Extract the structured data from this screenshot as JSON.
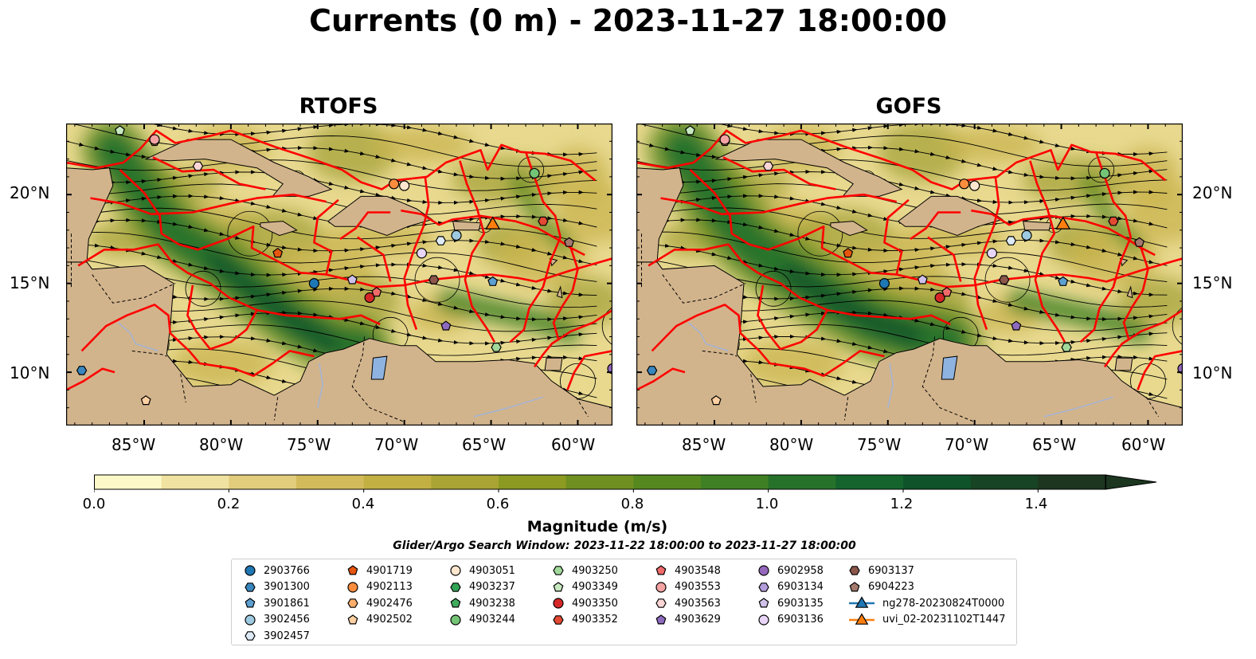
{
  "title": "Currents (0 m) - 2023-11-27 18:00:00",
  "panels": [
    {
      "title": "RTOFS"
    },
    {
      "title": "GOFS"
    }
  ],
  "axes": {
    "y_ticks": [
      "20°N",
      "15°N",
      "10°N"
    ],
    "x_ticks": [
      "85°W",
      "80°W",
      "75°W",
      "70°W",
      "65°W",
      "60°W"
    ],
    "lon_range": [
      -89.5,
      -58
    ],
    "lat_range": [
      7,
      24
    ]
  },
  "colorbar": {
    "title": "Magnitude (m/s)",
    "ticks": [
      "0.0",
      "0.2",
      "0.4",
      "0.6",
      "0.8",
      "1.0",
      "1.2",
      "1.4"
    ],
    "range": [
      0,
      1.5
    ],
    "extend": "max",
    "colors": [
      "#fdf8c8",
      "#f0e2a0",
      "#e2cd7c",
      "#d3bb5c",
      "#c3b043",
      "#a9a433",
      "#8c9a22",
      "#6f9020",
      "#55881f",
      "#3f8025",
      "#26722a",
      "#15642e",
      "#0f532a",
      "#174424",
      "#1c361f"
    ]
  },
  "search_window": "Glider/Argo Search Window: 2023-11-22 18:00:00 to 2023-11-27 18:00:00",
  "legend": [
    {
      "label": "2903766",
      "marker": "circle",
      "color": "#1f77b4"
    },
    {
      "label": "3901300",
      "marker": "hexagon",
      "color": "#3a87bf"
    },
    {
      "label": "3901861",
      "marker": "pentagon",
      "color": "#5c9fd1"
    },
    {
      "label": "3902456",
      "marker": "circle",
      "color": "#9ecae1"
    },
    {
      "label": "3902457",
      "marker": "hexagon",
      "color": "#deebf7"
    },
    {
      "label": "4901719",
      "marker": "pentagon",
      "color": "#e6550d"
    },
    {
      "label": "4902113",
      "marker": "circle",
      "color": "#fd8d3c"
    },
    {
      "label": "4902476",
      "marker": "hexagon",
      "color": "#fdae6b"
    },
    {
      "label": "4902502",
      "marker": "pentagon",
      "color": "#fdd0a2"
    },
    {
      "label": "4903051",
      "marker": "circle",
      "color": "#fee6ce"
    },
    {
      "label": "4903237",
      "marker": "hexagon",
      "color": "#31a354"
    },
    {
      "label": "4903238",
      "marker": "pentagon",
      "color": "#41ab5d"
    },
    {
      "label": "4903244",
      "marker": "circle",
      "color": "#74c476"
    },
    {
      "label": "4903250",
      "marker": "hexagon",
      "color": "#a1d99b"
    },
    {
      "label": "4903349",
      "marker": "pentagon",
      "color": "#c7e9c0"
    },
    {
      "label": "4903350",
      "marker": "circle",
      "color": "#d62728"
    },
    {
      "label": "4903352",
      "marker": "hexagon",
      "color": "#e34a33"
    },
    {
      "label": "4903548",
      "marker": "pentagon",
      "color": "#f06a6a"
    },
    {
      "label": "4903553",
      "marker": "circle",
      "color": "#f4a3a3"
    },
    {
      "label": "4903563",
      "marker": "hexagon",
      "color": "#fcd5d5"
    },
    {
      "label": "4903629",
      "marker": "pentagon",
      "color": "#8e6bbf"
    },
    {
      "label": "6902958",
      "marker": "circle",
      "color": "#9467bd"
    },
    {
      "label": "6903134",
      "marker": "hexagon",
      "color": "#b39ddb"
    },
    {
      "label": "6903135",
      "marker": "pentagon",
      "color": "#cfc1ea"
    },
    {
      "label": "6903136",
      "marker": "circle",
      "color": "#e8d5f7"
    },
    {
      "label": "6903137",
      "marker": "hexagon",
      "color": "#8c564b"
    },
    {
      "label": "6904223",
      "marker": "pentagon",
      "color": "#a57a6e"
    },
    {
      "label": "ng278-20230824T0000",
      "marker": "triangle-line",
      "color": "#1f77b4"
    },
    {
      "label": "uvi_02-20231102T1447",
      "marker": "triangle-line",
      "color": "#ff7f0e"
    }
  ],
  "floats": [
    {
      "id": "2903766",
      "lon": -75.2,
      "lat": 15.0
    },
    {
      "id": "3901300",
      "lon": -88.6,
      "lat": 10.1
    },
    {
      "id": "3901861",
      "lon": -64.9,
      "lat": 15.1
    },
    {
      "id": "3902456",
      "lon": -67.0,
      "lat": 17.7
    },
    {
      "id": "3902457",
      "lon": -67.9,
      "lat": 17.4
    },
    {
      "id": "4901719",
      "lon": -77.3,
      "lat": 16.7
    },
    {
      "id": "4902113",
      "lon": -70.6,
      "lat": 20.6
    },
    {
      "id": "4902476",
      "lon": -84.4,
      "lat": 23.0
    },
    {
      "id": "4902502",
      "lon": -84.9,
      "lat": 8.4
    },
    {
      "id": "4903051",
      "lon": -70.0,
      "lat": 20.5
    },
    {
      "id": "4903244",
      "lon": -62.5,
      "lat": 21.2
    },
    {
      "id": "4903349",
      "lon": -86.4,
      "lat": 23.6
    },
    {
      "id": "4903350",
      "lon": -72.0,
      "lat": 14.2
    },
    {
      "id": "4903352",
      "lon": -62.0,
      "lat": 18.5
    },
    {
      "id": "4903548",
      "lon": -71.6,
      "lat": 14.5
    },
    {
      "id": "4903553",
      "lon": -84.4,
      "lat": 23.1
    },
    {
      "id": "4903563",
      "lon": -81.9,
      "lat": 21.6
    },
    {
      "id": "4903629",
      "lon": -67.6,
      "lat": 12.6
    },
    {
      "id": "4903250",
      "lon": -64.7,
      "lat": 11.4
    },
    {
      "id": "6903135",
      "lon": -73.0,
      "lat": 15.2
    },
    {
      "id": "6903136",
      "lon": -69.0,
      "lat": 16.7
    },
    {
      "id": "6903137",
      "lon": -68.3,
      "lat": 15.2
    },
    {
      "id": "6902958",
      "lon": -58.0,
      "lat": 10.2
    },
    {
      "id": "6904223",
      "lon": -60.5,
      "lat": 17.3
    }
  ],
  "gliders": [
    {
      "id": "ng278-20230824T0000",
      "lon": -64.9,
      "lat": 18.2
    },
    {
      "id": "uvi_02-20231102T1447",
      "lon": -64.9,
      "lat": 18.2
    }
  ],
  "map_colors": {
    "land": "#d2b48c",
    "track": "#ff0000",
    "lake": "#8fb3e0",
    "river": "#a3b4d6"
  }
}
